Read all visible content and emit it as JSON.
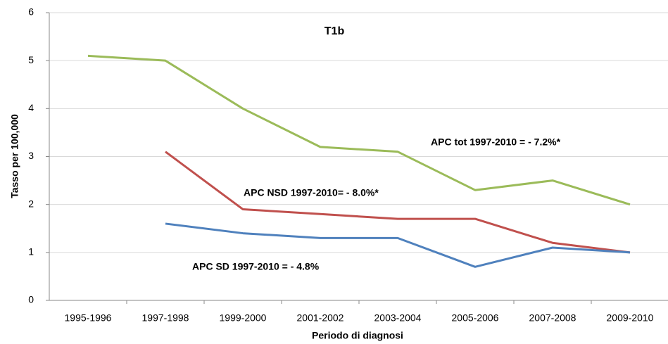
{
  "chart_data": {
    "type": "line",
    "title": "T1b",
    "x_label": "Periodo di diagnosi",
    "y_label": "Tasso per 100,000",
    "categories": [
      "1995-1996",
      "1997-1998",
      "1999-2000",
      "2001-2002",
      "2003-2004",
      "2005-2006",
      "2007-2008",
      "2009-2010"
    ],
    "series": [
      {
        "color": "#9bbb59",
        "values": [
          5.1,
          5.0,
          4.0,
          3.2,
          3.1,
          2.3,
          2.5,
          2.0
        ]
      },
      {
        "color": "#c0504d",
        "values": [
          null,
          3.1,
          1.9,
          1.8,
          1.7,
          1.7,
          1.2,
          1.0
        ]
      },
      {
        "color": "#4f81bd",
        "values": [
          null,
          1.6,
          1.4,
          1.3,
          1.3,
          0.7,
          1.1,
          1.0
        ]
      }
    ],
    "annotations": [
      "APC tot 1997-2010 = - 7.2%*",
      "APC NSD 1997-2010= - 8.0%*",
      "APC SD 1997-2010 = - 4.8%"
    ],
    "ylim": [
      0,
      6
    ],
    "yticks": [
      0,
      1,
      2,
      3,
      4,
      5,
      6
    ],
    "grid": true
  }
}
